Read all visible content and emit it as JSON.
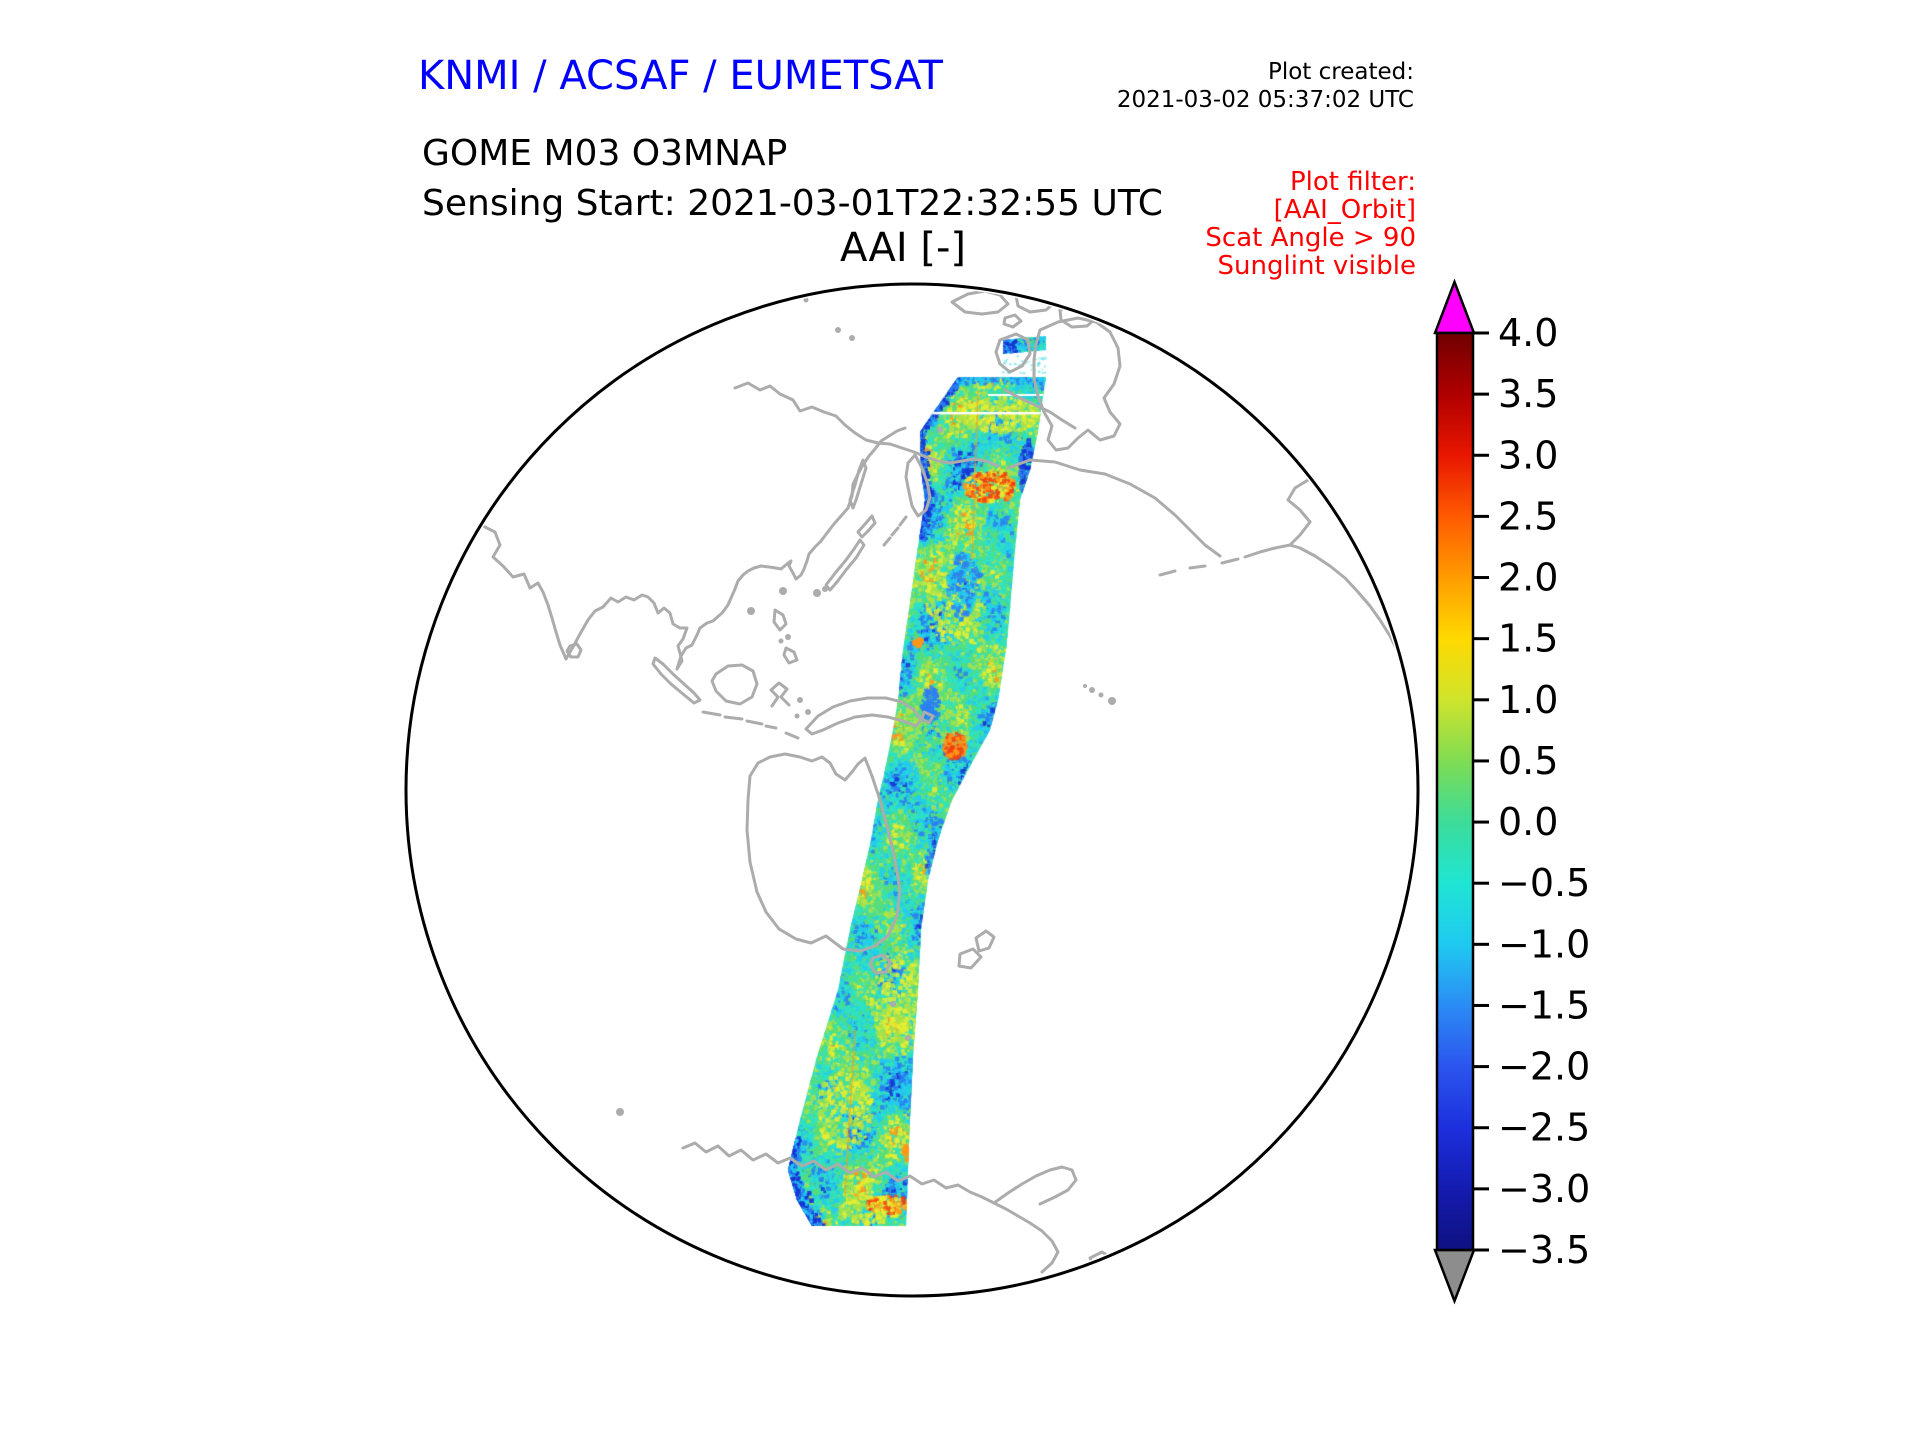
{
  "header": {
    "organization": "KNMI / ACSAF / EUMETSAT",
    "product": "GOME M03 O3MNAP",
    "sensing_start": "Sensing Start: 2021-03-01T22:32:55 UTC",
    "plot_created_label": "Plot created:",
    "plot_created_value": "2021-03-02 05:37:02 UTC"
  },
  "plot_filter": {
    "title": "Plot filter:",
    "lines": [
      "[AAI_Orbit]",
      "Scat Angle > 90",
      "Sunglint visible"
    ]
  },
  "chart_data": {
    "type": "heatmap",
    "title": "AAI [-]",
    "projection": "orthographic globe centered on the Pacific",
    "description": "Absorbing Aerosol Index of a single GOME-2 (Metop M03) orbit swath running from the Canadian Arctic south across the Bering Strait, western Pacific, New Guinea and Australia down to Antarctica. Values are mostly between -1 and +1 (turquoise/green/yellow-green) with orange/red aerosol patches near Chukotka (~+2.5), mid-Pacific (~+2) and near the Antarctic end, and deep blue scan-edge values down to -3.",
    "colorbar": {
      "orientation": "vertical",
      "range": [
        -3.5,
        4.0
      ],
      "tick_step": 0.5,
      "tick_labels": [
        "4.0",
        "3.5",
        "3.0",
        "2.5",
        "2.0",
        "1.5",
        "1.0",
        "0.5",
        "0.0",
        "−0.5",
        "−1.0",
        "−1.5",
        "−2.0",
        "−2.5",
        "−3.0",
        "−3.5"
      ],
      "tick_values": [
        4.0,
        3.5,
        3.0,
        2.5,
        2.0,
        1.5,
        1.0,
        0.5,
        0.0,
        -0.5,
        -1.0,
        -1.5,
        -2.0,
        -2.5,
        -3.0,
        -3.5
      ],
      "over_arrow_color": "#ff00ff",
      "under_arrow_color": "#8d8d8d",
      "gradient_stops": [
        [
          0.0,
          "#700000"
        ],
        [
          0.067,
          "#b00000"
        ],
        [
          0.133,
          "#e81600"
        ],
        [
          0.2,
          "#ff5a00"
        ],
        [
          0.267,
          "#ff9c00"
        ],
        [
          0.333,
          "#ffd900"
        ],
        [
          0.4,
          "#cfe42c"
        ],
        [
          0.467,
          "#7fdc52"
        ],
        [
          0.533,
          "#3cdc9a"
        ],
        [
          0.6,
          "#1fe5d3"
        ],
        [
          0.667,
          "#1fc9f0"
        ],
        [
          0.733,
          "#2b8cf5"
        ],
        [
          0.8,
          "#2b55ee"
        ],
        [
          0.867,
          "#1c30dd"
        ],
        [
          0.933,
          "#141baf"
        ],
        [
          1.0,
          "#0e1180"
        ]
      ]
    },
    "swath_palette": {
      "base": "#3adfb2",
      "deep_blue": "#1633d6",
      "blue": "#2a7ff2",
      "cyan": "#22cdee",
      "turquoise": "#2ee3c3",
      "green": "#57dd78",
      "yellow_green": "#a9e24a",
      "yellow": "#e9ef2f",
      "orange": "#ff9718",
      "red": "#f23c12"
    },
    "map": {
      "coastline_color": "#acacac",
      "globe_outline_color": "#000000"
    }
  },
  "colors": {
    "title_blue": "#0000ff",
    "filter_red": "#ff0000",
    "text_black": "#000000"
  }
}
